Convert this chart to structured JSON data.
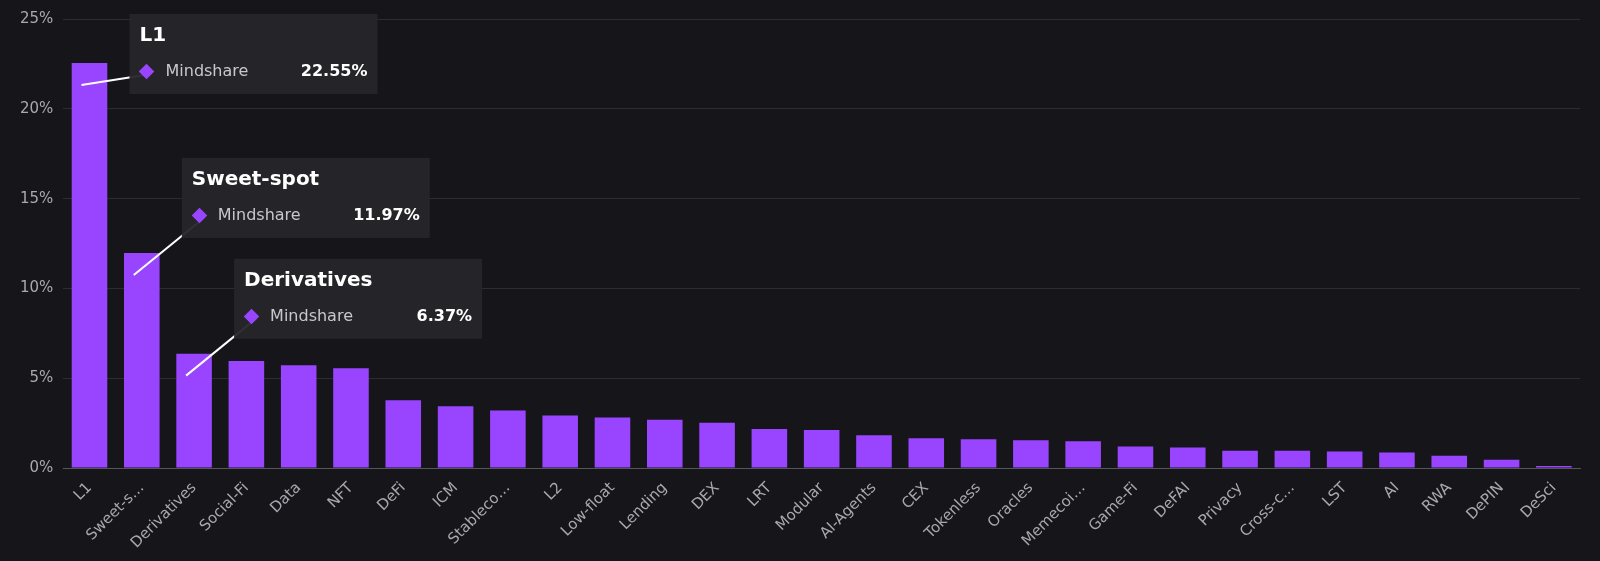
{
  "chart_data": {
    "type": "bar",
    "categories": [
      "L1",
      "Sweet-s…",
      "Derivatives",
      "Social-Fi",
      "Data",
      "NFT",
      "DeFi",
      "ICM",
      "Stableco…",
      "L2",
      "Low-float",
      "Lending",
      "DEX",
      "LRT",
      "Modular",
      "AI-Agents",
      "CEX",
      "Tokenless",
      "Oracles",
      "Memecoi…",
      "Game-Fi",
      "DeFAI",
      "Privacy",
      "Cross-c…",
      "LST",
      "AI",
      "RWA",
      "DePIN",
      "DeSci"
    ],
    "series": [
      {
        "color": "#9945ff",
        "values": [
          22.55,
          11.97,
          6.37,
          5.96,
          5.73,
          5.56,
          3.78,
          3.44,
          3.21,
          2.92,
          2.81,
          2.69,
          2.52,
          2.18,
          2.12,
          1.83,
          1.66,
          1.61,
          1.55,
          1.49,
          1.2,
          1.15,
          0.97,
          0.97,
          0.92,
          0.86,
          0.69,
          0.46,
          0.11
        ]
      }
    ],
    "annotations": [
      "L1",
      "Mindshare",
      "22.55%",
      "Sweet-spot",
      "Mindshare",
      "11.97%",
      "Derivatives",
      "Mindshare",
      "6.37%"
    ],
    "ylim": [
      0,
      25
    ],
    "yticks": [
      {
        "value": 0,
        "label": "0%"
      },
      {
        "value": 5,
        "label": "5%"
      },
      {
        "value": 10,
        "label": "10%"
      },
      {
        "value": 15,
        "label": "15%"
      },
      {
        "value": 20,
        "label": "20%"
      },
      {
        "value": 25,
        "label": "25%"
      }
    ],
    "grid": "y"
  }
}
